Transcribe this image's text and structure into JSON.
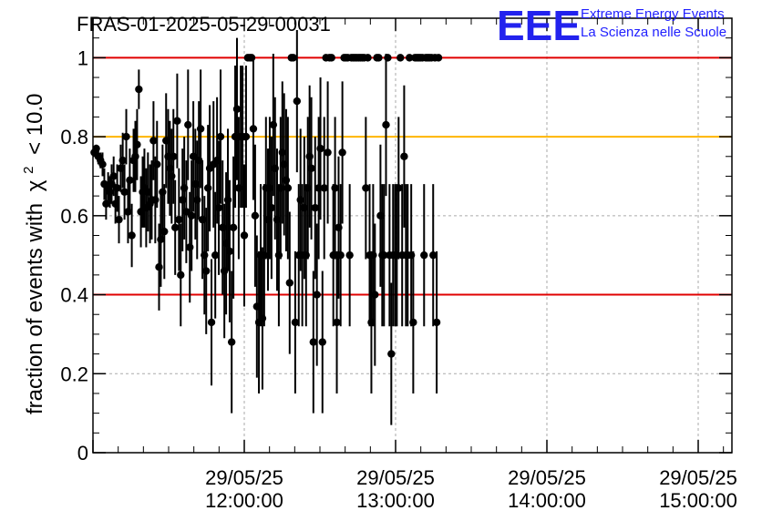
{
  "title": "FRAS-01-2025-05-29-00031",
  "logo": {
    "mark": "EEE",
    "line1": "Extreme Energy Events",
    "line2": "La Scienza nelle Scuole",
    "color": "#1f1fff"
  },
  "chart_data": {
    "type": "scatter",
    "title": "FRAS-01-2025-05-29-00031",
    "ylabel_prefix": "fraction of events with",
    "ylabel_symbol": "χ",
    "ylabel_sup": "2",
    "ylabel_suffix": "< 10.0",
    "xlabel": "",
    "ylim": [
      0,
      1.1
    ],
    "yticks": [
      "0",
      "0.2",
      "0.4",
      "0.6",
      "0.8",
      "1"
    ],
    "ytick_values": [
      0,
      0.2,
      0.4,
      0.6,
      0.8,
      1.0
    ],
    "xticks": [
      {
        "date": "29/05/25",
        "time": "12:00:00",
        "minutes": 60
      },
      {
        "date": "29/05/25",
        "time": "13:00:00",
        "minutes": 120
      },
      {
        "date": "29/05/25",
        "time": "14:00:00",
        "minutes": 180
      },
      {
        "date": "29/05/25",
        "time": "15:00:00",
        "minutes": 240
      }
    ],
    "reference_lines": [
      {
        "y": 1.0,
        "color": "#e00000"
      },
      {
        "y": 0.8,
        "color": "#ffb400"
      },
      {
        "y": 0.4,
        "color": "#e00000"
      }
    ],
    "grid": true,
    "marker_color": "#000000",
    "points": [
      [
        0.5,
        0.76,
        0.01
      ],
      [
        1.3,
        0.77,
        0.01
      ],
      [
        2.1,
        0.75,
        0.02
      ],
      [
        3.0,
        0.74,
        0.02
      ],
      [
        3.8,
        0.73,
        0.03
      ],
      [
        4.5,
        0.68,
        0.04
      ],
      [
        5.2,
        0.63,
        0.04
      ],
      [
        6.0,
        0.67,
        0.04
      ],
      [
        6.7,
        0.66,
        0.04
      ],
      [
        7.4,
        0.68,
        0.05
      ],
      [
        8.2,
        0.7,
        0.05
      ],
      [
        8.9,
        0.63,
        0.05
      ],
      [
        9.6,
        0.67,
        0.06
      ],
      [
        10.3,
        0.59,
        0.06
      ],
      [
        11.0,
        0.72,
        0.06
      ],
      [
        11.8,
        0.74,
        0.07
      ],
      [
        12.5,
        0.66,
        0.07
      ],
      [
        13.2,
        0.8,
        0.07
      ],
      [
        13.9,
        0.61,
        0.08
      ],
      [
        14.6,
        0.69,
        0.08
      ],
      [
        15.4,
        0.55,
        0.08
      ],
      [
        16.1,
        0.74,
        0.08
      ],
      [
        16.8,
        0.75,
        0.09
      ],
      [
        17.5,
        0.78,
        0.09
      ],
      [
        18.2,
        0.92,
        0.05
      ],
      [
        19.0,
        0.61,
        0.09
      ],
      [
        19.7,
        0.66,
        0.09
      ],
      [
        20.4,
        0.67,
        0.1
      ],
      [
        21.1,
        0.62,
        0.1
      ],
      [
        21.8,
        0.66,
        0.1
      ],
      [
        22.6,
        0.63,
        0.1
      ],
      [
        23.3,
        0.64,
        0.1
      ],
      [
        24.0,
        0.79,
        0.1
      ],
      [
        24.7,
        0.64,
        0.11
      ],
      [
        25.4,
        0.73,
        0.11
      ],
      [
        26.2,
        0.47,
        0.11
      ],
      [
        26.9,
        0.54,
        0.12
      ],
      [
        27.6,
        0.66,
        0.12
      ],
      [
        28.3,
        0.56,
        0.12
      ],
      [
        29.0,
        0.79,
        0.12
      ],
      [
        29.8,
        0.75,
        0.12
      ],
      [
        30.5,
        0.72,
        0.12
      ],
      [
        31.2,
        0.7,
        0.12
      ],
      [
        31.9,
        0.75,
        0.12
      ],
      [
        32.6,
        0.57,
        0.12
      ],
      [
        33.4,
        0.84,
        0.12
      ],
      [
        34.1,
        0.59,
        0.13
      ],
      [
        34.8,
        0.45,
        0.13
      ],
      [
        35.5,
        0.64,
        0.13
      ],
      [
        36.2,
        0.67,
        0.13
      ],
      [
        37.0,
        0.61,
        0.13
      ],
      [
        37.7,
        0.83,
        0.14
      ],
      [
        38.4,
        0.52,
        0.14
      ],
      [
        39.1,
        0.6,
        0.14
      ],
      [
        39.8,
        0.75,
        0.14
      ],
      [
        40.6,
        0.68,
        0.14
      ],
      [
        41.3,
        0.64,
        0.15
      ],
      [
        42.0,
        0.74,
        0.15
      ],
      [
        42.7,
        0.82,
        0.15
      ],
      [
        43.4,
        0.59,
        0.15
      ],
      [
        44.2,
        0.5,
        0.15
      ],
      [
        44.9,
        0.46,
        0.16
      ],
      [
        45.6,
        0.67,
        0.16
      ],
      [
        46.3,
        0.72,
        0.16
      ],
      [
        47.0,
        0.33,
        0.16
      ],
      [
        47.8,
        0.73,
        0.16
      ],
      [
        48.5,
        0.5,
        0.16
      ],
      [
        49.2,
        0.74,
        0.16
      ],
      [
        49.9,
        0.62,
        0.17
      ],
      [
        50.6,
        0.8,
        0.17
      ],
      [
        51.4,
        0.57,
        0.17
      ],
      [
        52.1,
        0.46,
        0.17
      ],
      [
        52.8,
        0.53,
        0.18
      ],
      [
        53.5,
        0.64,
        0.18
      ],
      [
        54.2,
        0.51,
        0.18
      ],
      [
        55.0,
        0.28,
        0.18
      ],
      [
        55.7,
        0.57,
        0.18
      ],
      [
        56.4,
        0.8,
        0.18
      ],
      [
        57.1,
        0.87,
        0.18
      ],
      [
        57.8,
        0.67,
        0.18
      ],
      [
        58.6,
        0.8,
        0.18
      ],
      [
        59.3,
        0.8,
        0.18
      ],
      [
        60.0,
        0.55,
        0.18
      ],
      [
        60.7,
        0.8,
        0.18
      ],
      [
        61.4,
        1.0,
        0.0
      ],
      [
        62.2,
        1.0,
        0.0
      ],
      [
        62.9,
        1.0,
        0.0
      ],
      [
        63.6,
        0.82,
        0.18
      ],
      [
        64.3,
        0.6,
        0.18
      ],
      [
        65.0,
        0.37,
        0.18
      ],
      [
        65.8,
        0.33,
        0.18
      ],
      [
        66.5,
        0.5,
        0.18
      ],
      [
        67.2,
        0.34,
        0.18
      ],
      [
        67.9,
        0.5,
        0.18
      ],
      [
        68.6,
        0.67,
        0.18
      ],
      [
        69.4,
        0.59,
        0.18
      ],
      [
        70.1,
        0.67,
        0.18
      ],
      [
        70.8,
        0.62,
        0.18
      ],
      [
        71.5,
        0.83,
        0.18
      ],
      [
        72.2,
        0.72,
        0.18
      ],
      [
        73.0,
        0.59,
        0.18
      ],
      [
        73.7,
        0.5,
        0.18
      ],
      [
        74.4,
        0.67,
        0.18
      ],
      [
        75.1,
        0.76,
        0.18
      ],
      [
        75.8,
        0.73,
        0.18
      ],
      [
        76.6,
        0.69,
        0.18
      ],
      [
        77.3,
        0.67,
        0.18
      ],
      [
        78.0,
        0.43,
        0.18
      ],
      [
        78.7,
        1.0,
        0.0
      ],
      [
        79.4,
        1.0,
        0.0
      ],
      [
        80.2,
        0.33,
        0.18
      ],
      [
        80.9,
        0.89,
        0.18
      ],
      [
        81.6,
        0.5,
        0.18
      ],
      [
        82.3,
        0.64,
        0.18
      ],
      [
        83.0,
        0.5,
        0.18
      ],
      [
        83.8,
        0.62,
        0.18
      ],
      [
        84.5,
        0.5,
        0.18
      ],
      [
        85.2,
        0.67,
        0.18
      ],
      [
        85.9,
        0.75,
        0.18
      ],
      [
        86.6,
        0.72,
        0.18
      ],
      [
        87.4,
        0.28,
        0.18
      ],
      [
        88.1,
        0.62,
        0.18
      ],
      [
        88.8,
        0.4,
        0.18
      ],
      [
        89.5,
        0.67,
        0.18
      ],
      [
        90.2,
        0.77,
        0.18
      ],
      [
        91.0,
        0.28,
        0.18
      ],
      [
        91.7,
        0.67,
        0.18
      ],
      [
        92.4,
        1.0,
        0.0
      ],
      [
        93.1,
        0.76,
        0.18
      ],
      [
        93.8,
        1.0,
        0.0
      ],
      [
        94.6,
        1.0,
        0.0
      ],
      [
        95.3,
        0.5,
        0.18
      ],
      [
        96.0,
        0.67,
        0.18
      ],
      [
        96.7,
        0.33,
        0.18
      ],
      [
        97.4,
        0.57,
        0.18
      ],
      [
        98.2,
        0.5,
        0.18
      ],
      [
        98.9,
        0.76,
        0.18
      ],
      [
        99.6,
        1.0,
        0.0
      ],
      [
        100.3,
        1.0,
        0.0
      ],
      [
        101.0,
        1.0,
        0.0
      ],
      [
        101.8,
        0.5,
        0.18
      ],
      [
        102.5,
        1.0,
        0.0
      ],
      [
        103.2,
        1.0,
        0.0
      ],
      [
        103.9,
        1.0,
        0.0
      ],
      [
        104.6,
        1.0,
        0.0
      ],
      [
        105.4,
        1.0,
        0.0
      ],
      [
        106.1,
        1.0,
        0.0
      ],
      [
        106.8,
        1.0,
        0.0
      ],
      [
        107.5,
        1.0,
        0.0
      ],
      [
        108.2,
        0.67,
        0.18
      ],
      [
        109.0,
        1.0,
        0.0
      ],
      [
        109.7,
        0.5,
        0.18
      ],
      [
        110.4,
        0.33,
        0.18
      ],
      [
        111.1,
        0.5,
        0.18
      ],
      [
        111.8,
        0.4,
        0.18
      ],
      [
        112.6,
        1.0,
        0.0
      ],
      [
        113.3,
        1.0,
        0.0
      ],
      [
        114.0,
        0.6,
        0.18
      ],
      [
        114.7,
        0.5,
        0.18
      ],
      [
        115.4,
        0.5,
        0.18
      ],
      [
        116.2,
        0.83,
        0.18
      ],
      [
        116.9,
        1.0,
        0.0
      ],
      [
        117.6,
        0.5,
        0.18
      ],
      [
        118.3,
        0.25,
        0.18
      ],
      [
        119.0,
        0.5,
        0.18
      ],
      [
        119.8,
        0.5,
        0.18
      ],
      [
        120.5,
        0.5,
        0.18
      ],
      [
        121.2,
        0.67,
        0.18
      ],
      [
        121.9,
        1.0,
        0.0
      ],
      [
        122.6,
        0.5,
        0.18
      ],
      [
        123.4,
        0.75,
        0.18
      ],
      [
        124.1,
        0.5,
        0.18
      ],
      [
        124.8,
        0.5,
        0.18
      ],
      [
        125.5,
        1.0,
        0.0
      ],
      [
        126.2,
        0.5,
        0.18
      ],
      [
        127.0,
        0.33,
        0.18
      ],
      [
        127.7,
        1.0,
        0.0
      ],
      [
        128.4,
        1.0,
        0.0
      ],
      [
        129.1,
        1.0,
        0.0
      ],
      [
        129.8,
        1.0,
        0.0
      ],
      [
        130.6,
        1.0,
        0.0
      ],
      [
        131.3,
        0.5,
        0.18
      ],
      [
        132.0,
        1.0,
        0.0
      ],
      [
        132.7,
        1.0,
        0.0
      ],
      [
        133.4,
        1.0,
        0.0
      ],
      [
        134.2,
        1.0,
        0.0
      ],
      [
        134.9,
        0.5,
        0.18
      ],
      [
        135.6,
        1.0,
        0.0
      ],
      [
        136.3,
        0.33,
        0.18
      ],
      [
        137.0,
        1.0,
        0.0
      ]
    ]
  }
}
